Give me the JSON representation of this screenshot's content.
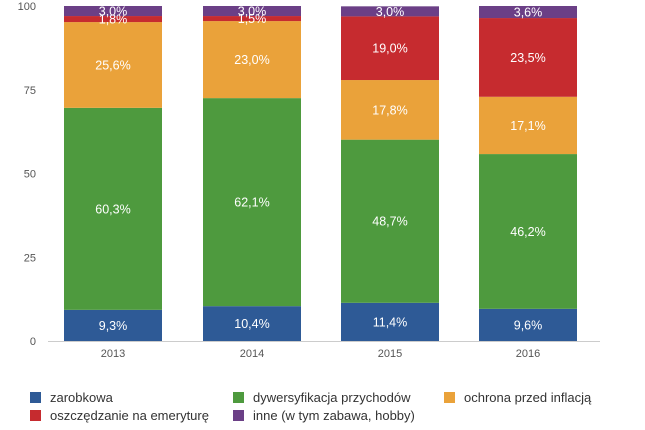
{
  "chart_data": {
    "type": "bar",
    "stacked": true,
    "categories": [
      "2013",
      "2014",
      "2015",
      "2016"
    ],
    "ylim": [
      0,
      100
    ],
    "yticks": [
      0,
      25,
      50,
      75,
      100
    ],
    "grid": false,
    "legend_position": "bottom",
    "series": [
      {
        "name": "zarobkowa",
        "color": "#2e5a96",
        "values": [
          9.3,
          10.4,
          11.4,
          9.6
        ],
        "labels": [
          "9,3%",
          "10,4%",
          "11,4%",
          "9,6%"
        ]
      },
      {
        "name": "dywersyfikacja przychodów",
        "color": "#4e9a3e",
        "values": [
          60.3,
          62.1,
          48.7,
          46.2
        ],
        "labels": [
          "60,3%",
          "62,1%",
          "48,7%",
          "46,2%"
        ]
      },
      {
        "name": "ochrona przed inflacją",
        "color": "#eaa23a",
        "values": [
          25.6,
          23.0,
          17.8,
          17.1
        ],
        "labels": [
          "25,6%",
          "23,0%",
          "17,8%",
          "17,1%"
        ]
      },
      {
        "name": "oszczędzanie na emeryturę",
        "color": "#c62b2f",
        "values": [
          1.8,
          1.5,
          19.0,
          23.5
        ],
        "labels": [
          "1,8%",
          "1,5%",
          "19,0%",
          "23,5%"
        ]
      },
      {
        "name": "inne (w tym zabawa, hobby)",
        "color": "#6b3f86",
        "values": [
          3.0,
          3.0,
          3.0,
          3.6
        ],
        "labels": [
          "3,0%",
          "3,0%",
          "3,0%",
          "3,6%"
        ]
      }
    ]
  },
  "legend": {
    "items": [
      {
        "label": "zarobkowa",
        "color": "#2e5a96"
      },
      {
        "label": "dywersyfikacja przychodów",
        "color": "#4e9a3e"
      },
      {
        "label": "ochrona przed inflacją",
        "color": "#eaa23a"
      },
      {
        "label": "oszczędzanie na emeryturę",
        "color": "#c62b2f"
      },
      {
        "label": "inne (w tym zabawa, hobby)",
        "color": "#6b3f86"
      }
    ]
  }
}
